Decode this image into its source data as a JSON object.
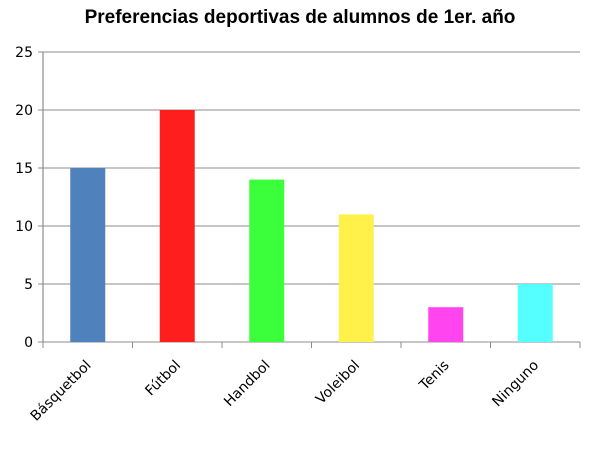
{
  "chart_data": {
    "type": "bar",
    "title": "Preferencias deportivas de alumnos de 1er. año",
    "xlabel": "",
    "ylabel": "",
    "categories": [
      "Básquetbol",
      "Fútbol",
      "Handbol",
      "Voleibol",
      "Tenis",
      "Ninguno"
    ],
    "values": [
      15,
      20,
      14,
      11,
      3,
      5
    ],
    "colors": [
      "#4F81BD",
      "#FF1E1E",
      "#3CFF3C",
      "#FFF04A",
      "#FF44F0",
      "#55FFFF"
    ],
    "ylim": [
      0,
      25
    ],
    "yticks": [
      0,
      5,
      10,
      15,
      20,
      25
    ],
    "grid": true,
    "legend": "none"
  }
}
